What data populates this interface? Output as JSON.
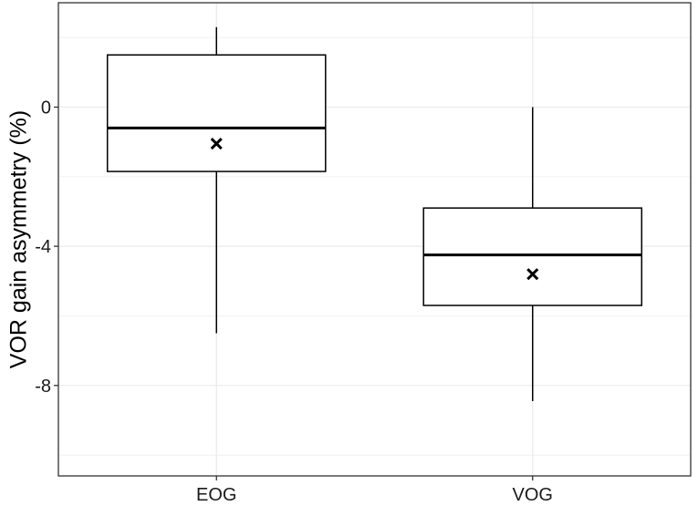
{
  "chart_data": {
    "type": "box",
    "title": "",
    "xlabel": "",
    "ylabel": "VOR gain asymmetry (%)",
    "ylim": [
      -10.6,
      3.0
    ],
    "yticks": [
      0,
      -4,
      -8
    ],
    "ytick_labels": [
      "0",
      "-4",
      "-8"
    ],
    "grid": true,
    "categories": [
      "EOG",
      "VOG"
    ],
    "boxes": [
      {
        "category": "EOG",
        "whisker_low": -6.5,
        "q1": -1.85,
        "median": -0.6,
        "q3": 1.5,
        "whisker_high": 2.3,
        "mean": -1.05
      },
      {
        "category": "VOG",
        "whisker_low": -8.45,
        "q1": -5.7,
        "median": -4.25,
        "q3": -2.9,
        "whisker_high": 0.0,
        "mean": -4.8
      }
    ],
    "colors": {
      "box_fill": "#ffffff",
      "box_stroke": "#000000",
      "grid": "#ebebeb",
      "panel_border": "#333333"
    }
  }
}
